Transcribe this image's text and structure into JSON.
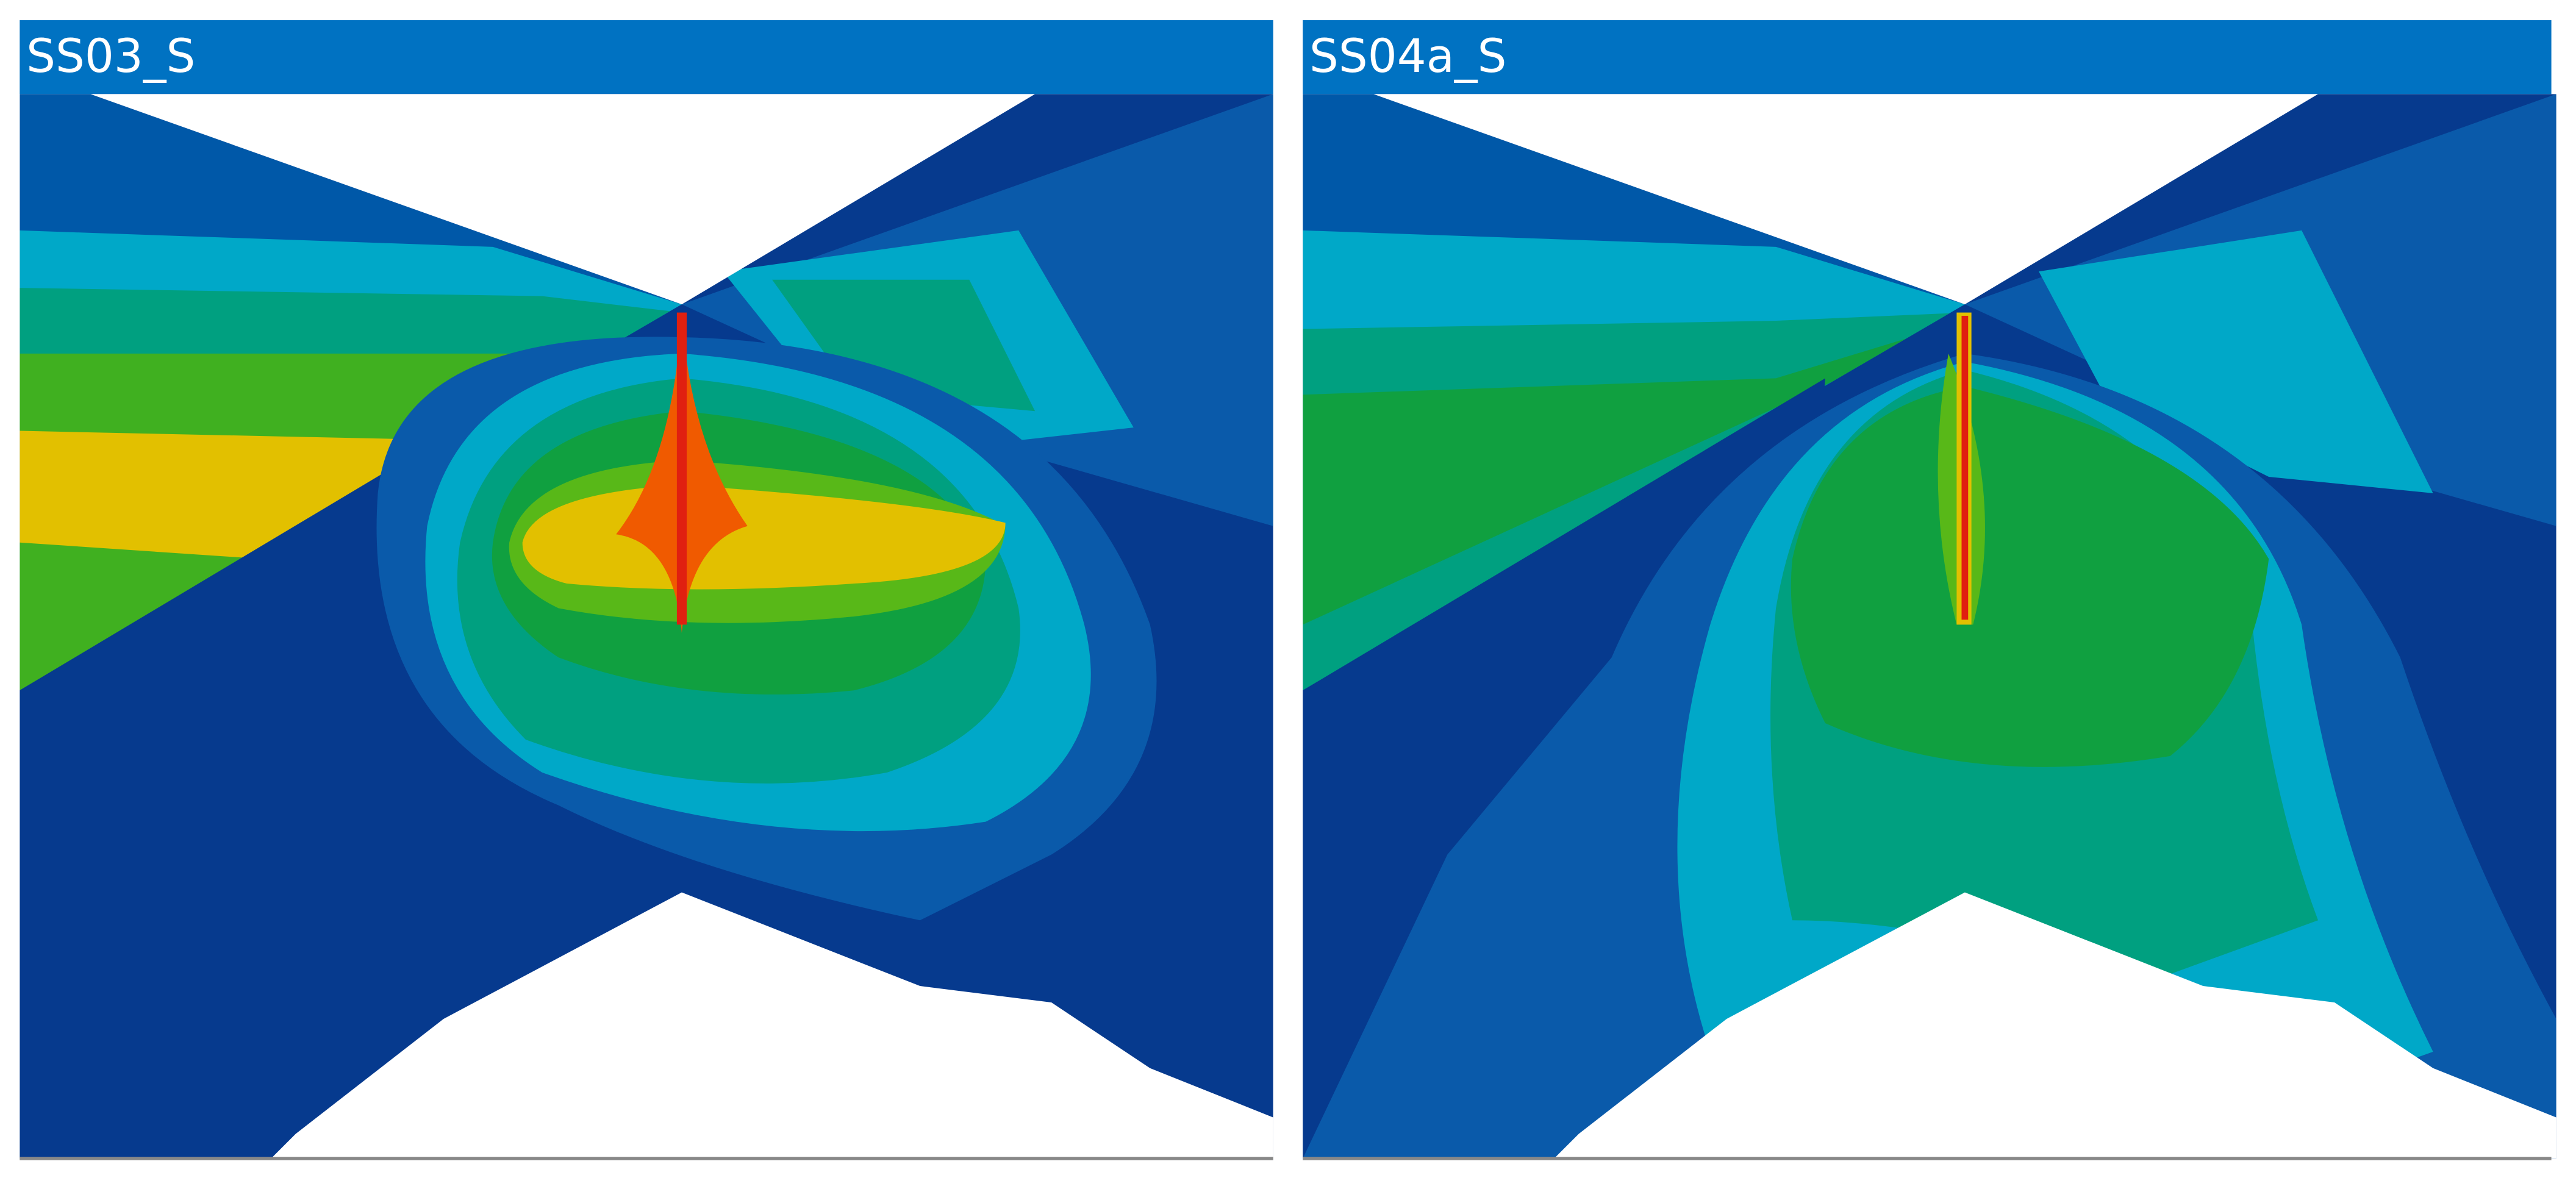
{
  "panels": [
    {
      "title": "SS03_S"
    },
    {
      "title": "SS04a_S"
    }
  ]
}
